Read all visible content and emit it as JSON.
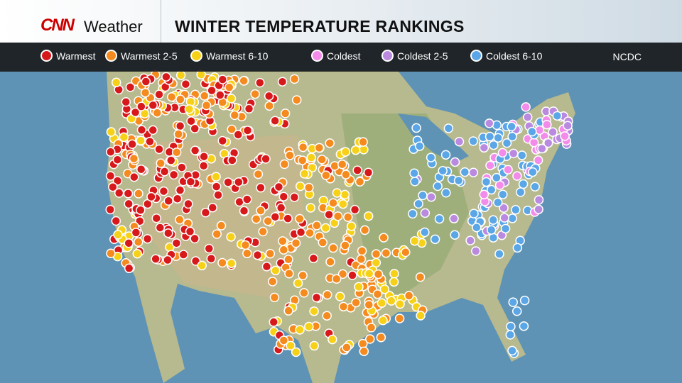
{
  "header": {
    "logo": "CNN",
    "logo_sub": "Weather",
    "title": "WINTER TEMPERATURE RANKINGS"
  },
  "legend": [
    {
      "label": "Warmest",
      "color": "#d7191c"
    },
    {
      "label": "Warmest 2-5",
      "color": "#f58a1f"
    },
    {
      "label": "Warmest 6-10",
      "color": "#f7d117"
    },
    {
      "label": "Coldest",
      "color": "#f38bea"
    },
    {
      "label": "Coldest 2-5",
      "color": "#b98ae0"
    },
    {
      "label": "Coldest 6-10",
      "color": "#5aa6e6"
    }
  ],
  "source": "NCDC",
  "colors": {
    "ocean": "#5f93b5",
    "land": "#b8b88a",
    "header_bar": "#191919"
  }
}
